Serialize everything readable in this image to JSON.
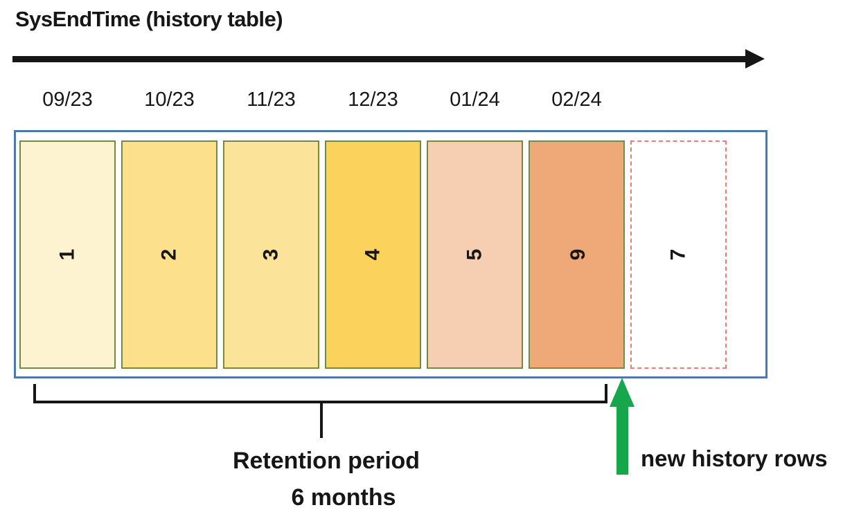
{
  "title": "SysEndTime (history table)",
  "timeline": {
    "months": [
      "09/23",
      "10/23",
      "11/23",
      "12/23",
      "01/24",
      "02/24"
    ]
  },
  "table": {
    "partitions": [
      {
        "number": "1",
        "fill": "#FDF3D1",
        "border": "solid",
        "digit_direction": "up"
      },
      {
        "number": "2",
        "fill": "#FCE08C",
        "border": "solid",
        "digit_direction": "up"
      },
      {
        "number": "3",
        "fill": "#FCE39A",
        "border": "solid",
        "digit_direction": "up"
      },
      {
        "number": "4",
        "fill": "#FBD35C",
        "border": "solid",
        "digit_direction": "up"
      },
      {
        "number": "5",
        "fill": "#F6CEB2",
        "border": "solid",
        "digit_direction": "up"
      },
      {
        "number": "6",
        "fill": "#EFA979",
        "border": "solid",
        "digit_direction": "down"
      },
      {
        "number": "7",
        "fill": "#FFFFFF",
        "border": "dashed",
        "digit_direction": "up"
      }
    ]
  },
  "annotations": {
    "retention_label_line1": "Retention period",
    "retention_label_line2": "6 months",
    "new_rows_label": "new history rows"
  },
  "colors": {
    "ink": "#161616",
    "container_border": "#4C78AB",
    "partition_border": "#708B3E",
    "dashed_partition_border": "#EE7B72",
    "green_arrow": "#16A74D"
  }
}
